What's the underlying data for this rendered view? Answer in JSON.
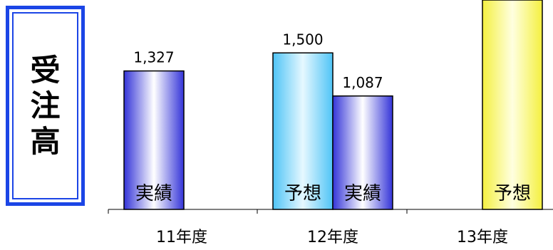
{
  "title_chars": [
    "受",
    "注",
    "高"
  ],
  "chart_data": {
    "type": "bar",
    "title": "受注高",
    "categories": [
      "11年度",
      "12年度",
      "13年度"
    ],
    "bars": [
      {
        "category": "11年度",
        "kind": "実績",
        "value": 1327,
        "value_label": "1,327",
        "style": "actual"
      },
      {
        "category": "12年度",
        "kind": "予想",
        "value": 1500,
        "value_label": "1,500",
        "style": "forecast12"
      },
      {
        "category": "12年度",
        "kind": "実績",
        "value": 1087,
        "value_label": "1,087",
        "style": "actual"
      },
      {
        "category": "13年度",
        "kind": "予想",
        "value": null,
        "value_label": "",
        "style": "forecast13"
      }
    ],
    "colors": {
      "actual": [
        "#3434d8",
        "#ffffff",
        "#3434d8"
      ],
      "forecast12": [
        "#4fc4f6",
        "#e6f8ff",
        "#4fc4f6"
      ],
      "forecast13": [
        "#f4f040",
        "#ffffe0",
        "#f4f040"
      ],
      "frame": "#1b45e6"
    }
  }
}
